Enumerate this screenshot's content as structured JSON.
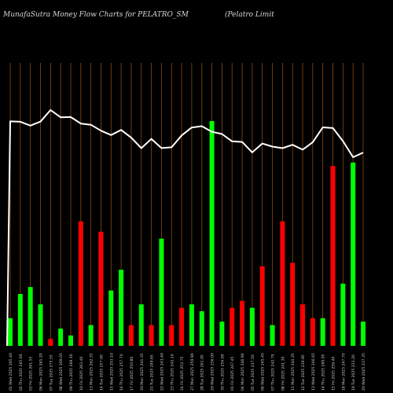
{
  "header": {
    "title": "MunafaSutra  Money Flow  Charts for PELATRO_SM",
    "subtitle": "(Pelatro  Limit"
  },
  "colors": {
    "background": "#000000",
    "grid": "#8a4a12",
    "up": "#00ff00",
    "down": "#ff0000",
    "price_line": "#ffffff"
  },
  "chart_data": {
    "type": "bar",
    "ylim": [
      0,
      100
    ],
    "grid": true,
    "categories": [
      "01 Wed 2025 265.40",
      "02 Thu 2025 265.00",
      "03 Fri 2025 261.55",
      "06 Mon 2025 265.20",
      "07 Tue 2025 275.55",
      "08 Wed 2025 269.05",
      "09 Thu 2025 269.30",
      "10 Fri 2025 263.40",
      "13 Mon 2025 262.35",
      "14 Tue 2025 257.00",
      "15 Wed 2025 253.10",
      "16 Thu 2025 257.70",
      "17 Fri 2025 250.80",
      "20 Mon 2025 241.35",
      "21 Tue 2025 249.65",
      "22 Wed 2025 241.40",
      "23 Thu 2025 242.10",
      "24 Fri 2025 252.75",
      "27 Mon 2025 259.90",
      "28 Tue 2025 261.05",
      "29 Wed 2025 256.00",
      "30 Thu 2025 254.00",
      "01 Fri 2025 247.45",
      "04 Mon 2025 246.90",
      "05 Tue 2025 237.50",
      "06 Wed 2025 245.45",
      "07 Thu 2025 242.70",
      "08 Fri 2025 241.30",
      "11 Mon 2025 244.35",
      "12 Tue 2025 239.95",
      "13 Wed 2025 246.65",
      "14 Thu 2025 260.05",
      "15 Fri 2025 259.40",
      "18 Mon 2025 247.70",
      "19 Tue 2025 233.20",
      "20 Wed 2025 237.35"
    ],
    "series": [
      {
        "values": [
          8,
          15,
          17,
          12,
          2,
          5,
          3,
          36,
          6,
          33,
          16,
          22,
          6,
          12,
          6,
          31,
          6,
          11,
          12,
          10,
          65,
          7,
          11,
          13,
          11,
          23,
          6,
          36,
          24,
          12,
          8,
          8,
          52,
          18,
          53,
          7
        ],
        "colors": [
          "up",
          "up",
          "up",
          "up",
          "down",
          "up",
          "up",
          "down",
          "up",
          "down",
          "up",
          "up",
          "down",
          "up",
          "down",
          "up",
          "down",
          "down",
          "up",
          "up",
          "up",
          "up",
          "down",
          "down",
          "up",
          "down",
          "up",
          "down",
          "down",
          "down",
          "down",
          "up",
          "down",
          "up",
          "up",
          "up"
        ],
        "extra": [
          null,
          null,
          null,
          null,
          null,
          null,
          null,
          null,
          null,
          null,
          null,
          null,
          null,
          null,
          null,
          null,
          null,
          null,
          null,
          null,
          null,
          null,
          null,
          null,
          null,
          null,
          null,
          null,
          null,
          null,
          null,
          null,
          null,
          null,
          null,
          null
        ]
      }
    ],
    "price_line": {
      "values": [
        265.4,
        265.0,
        261.55,
        265.2,
        275.55,
        269.05,
        269.3,
        263.4,
        262.35,
        257.0,
        253.1,
        257.7,
        250.8,
        241.35,
        249.65,
        241.4,
        242.1,
        252.75,
        259.9,
        261.05,
        256.0,
        254.0,
        247.45,
        246.9,
        237.5,
        245.45,
        242.7,
        241.3,
        244.35,
        239.95,
        246.65,
        260.05,
        259.4,
        247.7,
        233.2,
        237.35
      ]
    }
  }
}
